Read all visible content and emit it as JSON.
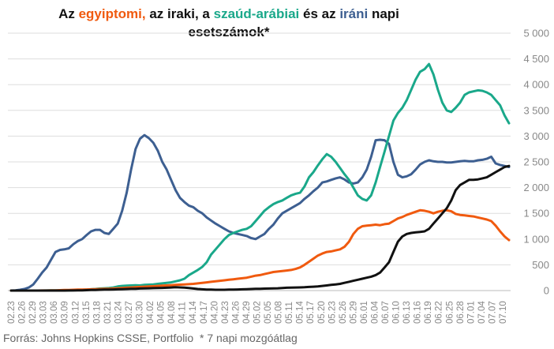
{
  "title": {
    "p1": "Az ",
    "s1": "egyiptomi,",
    "p2": " az iraki, a ",
    "s2": "szaúd-arábiai",
    "p3": " és az ",
    "s3": "iráni",
    "p4": " napi esetszámok*"
  },
  "footer": {
    "source": "Forrás: Johns Hopkins CSSE, Portfolio",
    "note": "* 7 napi mozgóátlag"
  },
  "colors": {
    "egypt": "#f05a0f",
    "iraq": "#111111",
    "saudi": "#1aa88a",
    "iran": "#3d5f91",
    "grid": "#dddddd",
    "axis_text": "#888888"
  },
  "chart_data": {
    "type": "line",
    "title": "Az egyiptomi, az iraki, a szaúd-arábiai és az iráni napi esetszámok*",
    "xlabel": "",
    "ylabel": "",
    "ylim": [
      0,
      5000
    ],
    "yticks": [
      0,
      500,
      1000,
      1500,
      2000,
      2500,
      3000,
      3500,
      4000,
      4500,
      5000
    ],
    "ytick_labels": [
      "0",
      "500",
      "1 000",
      "1 500",
      "2 000",
      "2 500",
      "3 000",
      "3 500",
      "4 000",
      "4 500",
      "5 000"
    ],
    "x_tick_labels": [
      "02.23",
      "02.26",
      "02.29",
      "03.03",
      "03.06",
      "03.09",
      "03.12",
      "03.15",
      "03.18",
      "03.21",
      "03.24",
      "03.27",
      "03.30",
      "04.02",
      "04.05",
      "04.08",
      "04.11",
      "04.14",
      "04.17",
      "04.20",
      "04.23",
      "04.26",
      "04.29",
      "05.02",
      "05.05",
      "05.08",
      "05.11",
      "05.14",
      "05.17",
      "05.20",
      "05.23",
      "05.26",
      "05.29",
      "06.01",
      "06.04",
      "06.07",
      "06.10",
      "06.13",
      "06.16",
      "06.19",
      "06.22",
      "06.25",
      "06.28",
      "07.01",
      "07.04",
      "07.07",
      "07.10"
    ],
    "grid": true,
    "legend": "none",
    "series": [
      {
        "country": "iran",
        "values": [
          0,
          5,
          15,
          30,
          60,
          120,
          230,
          350,
          450,
          600,
          750,
          790,
          800,
          820,
          900,
          960,
          1000,
          1080,
          1150,
          1180,
          1180,
          1120,
          1100,
          1200,
          1300,
          1550,
          1900,
          2350,
          2750,
          2950,
          3020,
          2960,
          2870,
          2720,
          2500,
          2350,
          2150,
          1950,
          1800,
          1720,
          1650,
          1620,
          1550,
          1500,
          1420,
          1360,
          1300,
          1250,
          1200,
          1150,
          1120,
          1100,
          1080,
          1060,
          1020,
          1000,
          1050,
          1100,
          1200,
          1280,
          1400,
          1500,
          1550,
          1600,
          1650,
          1700,
          1780,
          1850,
          1930,
          2000,
          2100,
          2120,
          2150,
          2180,
          2200,
          2160,
          2100,
          2080,
          2100,
          2200,
          2350,
          2600,
          2920,
          2930,
          2920,
          2850,
          2500,
          2250,
          2200,
          2220,
          2260,
          2350,
          2450,
          2500,
          2530,
          2510,
          2500,
          2500,
          2490,
          2490,
          2500,
          2510,
          2520,
          2510,
          2510,
          2530,
          2540,
          2560,
          2600,
          2470,
          2440,
          2420,
          2400
        ]
      },
      {
        "country": "saudi",
        "values": [
          0,
          0,
          0,
          0,
          0,
          0,
          0,
          0,
          2,
          3,
          5,
          5,
          5,
          5,
          8,
          10,
          15,
          20,
          25,
          30,
          40,
          45,
          50,
          60,
          80,
          90,
          95,
          100,
          105,
          100,
          110,
          115,
          120,
          130,
          140,
          150,
          160,
          180,
          200,
          230,
          300,
          350,
          400,
          460,
          550,
          700,
          800,
          900,
          1000,
          1080,
          1120,
          1150,
          1180,
          1200,
          1250,
          1350,
          1450,
          1550,
          1620,
          1680,
          1720,
          1750,
          1800,
          1850,
          1880,
          1900,
          2020,
          2200,
          2300,
          2430,
          2550,
          2650,
          2600,
          2500,
          2380,
          2260,
          2150,
          2000,
          1850,
          1780,
          1750,
          1850,
          2100,
          2400,
          2700,
          3000,
          3300,
          3450,
          3550,
          3700,
          3900,
          4100,
          4250,
          4300,
          4400,
          4200,
          3900,
          3650,
          3500,
          3470,
          3550,
          3650,
          3800,
          3850,
          3870,
          3890,
          3880,
          3850,
          3800,
          3700,
          3600,
          3400,
          3250
        ]
      },
      {
        "country": "egypt",
        "values": [
          0,
          0,
          0,
          0,
          0,
          0,
          0,
          1,
          2,
          3,
          5,
          8,
          10,
          12,
          15,
          18,
          20,
          22,
          25,
          28,
          30,
          33,
          36,
          40,
          45,
          50,
          55,
          60,
          65,
          70,
          75,
          80,
          85,
          90,
          95,
          100,
          105,
          110,
          115,
          120,
          125,
          130,
          140,
          150,
          160,
          170,
          180,
          190,
          200,
          210,
          220,
          230,
          240,
          250,
          270,
          290,
          300,
          320,
          340,
          360,
          370,
          380,
          390,
          400,
          420,
          450,
          500,
          560,
          620,
          680,
          720,
          750,
          760,
          780,
          800,
          850,
          950,
          1100,
          1200,
          1250,
          1260,
          1270,
          1280,
          1270,
          1290,
          1300,
          1350,
          1400,
          1430,
          1470,
          1500,
          1530,
          1560,
          1550,
          1530,
          1500,
          1530,
          1550,
          1560,
          1540,
          1490,
          1470,
          1460,
          1450,
          1440,
          1420,
          1400,
          1380,
          1350,
          1260,
          1150,
          1050,
          980
        ]
      },
      {
        "country": "iraq",
        "values": [
          0,
          0,
          0,
          0,
          0,
          0,
          0,
          0,
          0,
          0,
          0,
          0,
          0,
          1,
          2,
          3,
          5,
          8,
          10,
          12,
          15,
          18,
          20,
          22,
          25,
          28,
          30,
          33,
          36,
          40,
          42,
          45,
          48,
          50,
          52,
          55,
          60,
          65,
          62,
          58,
          50,
          40,
          30,
          25,
          20,
          18,
          16,
          15,
          16,
          18,
          20,
          22,
          25,
          28,
          30,
          33,
          36,
          38,
          40,
          42,
          45,
          50,
          55,
          58,
          60,
          62,
          65,
          70,
          75,
          80,
          90,
          100,
          110,
          120,
          130,
          150,
          170,
          190,
          210,
          230,
          250,
          270,
          300,
          350,
          450,
          550,
          750,
          950,
          1050,
          1100,
          1120,
          1130,
          1140,
          1150,
          1200,
          1300,
          1400,
          1500,
          1600,
          1750,
          1950,
          2050,
          2100,
          2150,
          2150,
          2160,
          2180,
          2200,
          2250,
          2300,
          2350,
          2400,
          2420
        ]
      }
    ]
  }
}
